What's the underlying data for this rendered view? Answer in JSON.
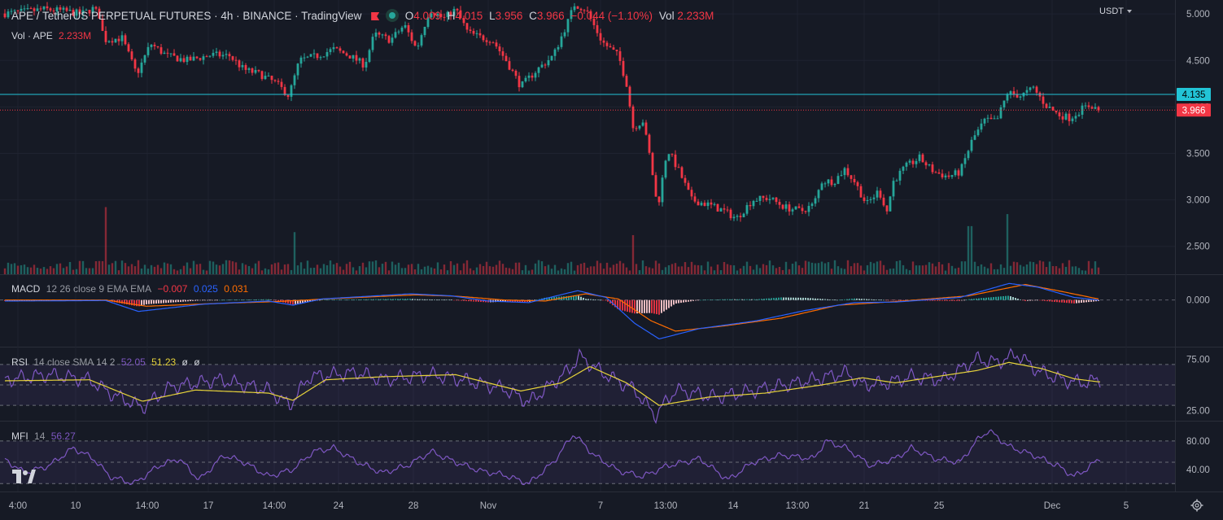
{
  "header": {
    "title": "APE / TetherUS PERPETUAL FUTURES · 4h · BINANCE · TradingView",
    "o_label": "O",
    "o_value": "4.009",
    "h_label": "H",
    "h_value": "4.015",
    "l_label": "L",
    "l_value": "3.956",
    "c_label": "C",
    "c_value": "3.966",
    "change": "−0.044 (−1.10%)",
    "vol_label": "Vol",
    "vol_value": "2.233M",
    "flag_icon": "red-flag-icon",
    "status_icon": "market-open-dot-icon"
  },
  "currency": "USDT",
  "volume_legend": {
    "label": "Vol · APE",
    "value": "2.233M"
  },
  "macd_legend": {
    "label": "MACD",
    "params": "12 26 close 9 EMA EMA",
    "v1": "−0.007",
    "v2": "0.025",
    "v3": "0.031"
  },
  "rsi_legend": {
    "label": "RSI",
    "params": "14 close SMA 14 2",
    "v1": "52.05",
    "v2": "51.23",
    "v3": "ø",
    "v4": "ø"
  },
  "mfi_legend": {
    "label": "MFI",
    "params": "14",
    "v1": "56.27"
  },
  "colors": {
    "background": "#161a25",
    "up": "#26a69a",
    "down": "#f23645",
    "macd_line": "#2962ff",
    "signal_line": "#ff6d00",
    "rsi_line": "#7e57c2",
    "rsi_ma": "#e6d23b",
    "level_line": "#22c4d6"
  },
  "chart_data": [
    {
      "type": "candlestick",
      "name": "APE / TetherUS",
      "ylim": [
        2.2,
        5.15
      ],
      "yticks": [
        "5.000",
        "4.500",
        "4.000",
        "3.500",
        "3.000",
        "2.500"
      ],
      "horizontal_line": {
        "value": 4.135,
        "label": "4.135"
      },
      "last_price": {
        "value": 3.966,
        "label": "3.966"
      },
      "x_ticks": [
        "4:00",
        "10",
        "14:00",
        "17",
        "14:00",
        "24",
        "28",
        "Nov",
        "7",
        "13:00",
        "14",
        "13:00",
        "21",
        "25",
        "Dec",
        "5"
      ],
      "close_anchors": [
        [
          0,
          5.0
        ],
        [
          25,
          5.02
        ],
        [
          55,
          5.05
        ],
        [
          80,
          5.03
        ],
        [
          100,
          5.0
        ],
        [
          115,
          5.06
        ],
        [
          122,
          4.98
        ],
        [
          128,
          4.72
        ],
        [
          150,
          4.74
        ],
        [
          168,
          4.35
        ],
        [
          185,
          4.68
        ],
        [
          205,
          4.55
        ],
        [
          230,
          4.5
        ],
        [
          260,
          4.56
        ],
        [
          282,
          4.55
        ],
        [
          300,
          4.4
        ],
        [
          320,
          4.35
        ],
        [
          340,
          4.25
        ],
        [
          355,
          4.12
        ],
        [
          368,
          4.5
        ],
        [
          390,
          4.55
        ],
        [
          410,
          4.62
        ],
        [
          430,
          4.55
        ],
        [
          448,
          4.45
        ],
        [
          460,
          4.78
        ],
        [
          480,
          4.72
        ],
        [
          497,
          4.88
        ],
        [
          512,
          4.62
        ],
        [
          528,
          5.05
        ],
        [
          545,
          4.95
        ],
        [
          560,
          5.05
        ],
        [
          575,
          4.8
        ],
        [
          590,
          4.75
        ],
        [
          605,
          4.72
        ],
        [
          622,
          4.5
        ],
        [
          640,
          4.22
        ],
        [
          660,
          4.4
        ],
        [
          680,
          4.55
        ],
        [
          698,
          4.92
        ],
        [
          706,
          5.1
        ],
        [
          720,
          5.05
        ],
        [
          740,
          4.7
        ],
        [
          760,
          4.55
        ],
        [
          770,
          4.25
        ],
        [
          778,
          3.78
        ],
        [
          790,
          3.85
        ],
        [
          800,
          3.4
        ],
        [
          808,
          2.9
        ],
        [
          820,
          3.55
        ],
        [
          835,
          3.3
        ],
        [
          850,
          3.0
        ],
        [
          870,
          2.95
        ],
        [
          890,
          2.88
        ],
        [
          905,
          2.8
        ],
        [
          925,
          3.0
        ],
        [
          945,
          3.02
        ],
        [
          965,
          2.92
        ],
        [
          985,
          2.88
        ],
        [
          1000,
          2.95
        ],
        [
          1010,
          3.2
        ],
        [
          1025,
          3.2
        ],
        [
          1038,
          3.33
        ],
        [
          1050,
          3.2
        ],
        [
          1065,
          2.95
        ],
        [
          1080,
          3.1
        ],
        [
          1090,
          2.88
        ],
        [
          1098,
          3.2
        ],
        [
          1112,
          3.35
        ],
        [
          1130,
          3.45
        ],
        [
          1148,
          3.3
        ],
        [
          1165,
          3.25
        ],
        [
          1180,
          3.3
        ],
        [
          1195,
          3.65
        ],
        [
          1210,
          3.85
        ],
        [
          1225,
          3.85
        ],
        [
          1238,
          4.15
        ],
        [
          1255,
          4.12
        ],
        [
          1270,
          4.2
        ],
        [
          1285,
          4.02
        ],
        [
          1300,
          3.92
        ],
        [
          1315,
          3.88
        ],
        [
          1330,
          3.98
        ],
        [
          1340,
          4.02
        ],
        [
          1350,
          3.966
        ]
      ]
    },
    {
      "type": "bar",
      "name": "Volume",
      "notable_spikes": [
        [
          130,
          2.233
        ],
        [
          362,
          1.4
        ],
        [
          777,
          1.3
        ],
        [
          1192,
          1.6
        ],
        [
          1238,
          2.0
        ]
      ]
    },
    {
      "type": "line",
      "name": "MACD",
      "ylim": [
        -0.9,
        0.45
      ],
      "ytick": "0.000",
      "series": [
        {
          "name": "MACD",
          "anchors": [
            [
              5,
              -0.02
            ],
            [
              130,
              -0.01
            ],
            [
              170,
              -0.22
            ],
            [
              250,
              -0.08
            ],
            [
              330,
              -0.02
            ],
            [
              360,
              -0.1
            ],
            [
              395,
              0.02
            ],
            [
              505,
              0.12
            ],
            [
              555,
              0.08
            ],
            [
              600,
              -0.02
            ],
            [
              650,
              -0.05
            ],
            [
              710,
              0.18
            ],
            [
              745,
              0.05
            ],
            [
              780,
              -0.45
            ],
            [
              810,
              -0.75
            ],
            [
              860,
              -0.55
            ],
            [
              930,
              -0.4
            ],
            [
              990,
              -0.2
            ],
            [
              1050,
              -0.05
            ],
            [
              1100,
              -0.04
            ],
            [
              1180,
              0.05
            ],
            [
              1240,
              0.32
            ],
            [
              1275,
              0.25
            ],
            [
              1320,
              0.05
            ],
            [
              1350,
              0.0
            ]
          ]
        },
        {
          "name": "Signal",
          "anchors": [
            [
              5,
              0.0
            ],
            [
              130,
              0.0
            ],
            [
              180,
              -0.12
            ],
            [
              260,
              -0.07
            ],
            [
              340,
              -0.03
            ],
            [
              400,
              0.02
            ],
            [
              510,
              0.1
            ],
            [
              565,
              0.07
            ],
            [
              620,
              0.0
            ],
            [
              670,
              -0.02
            ],
            [
              720,
              0.12
            ],
            [
              760,
              0.02
            ],
            [
              800,
              -0.4
            ],
            [
              830,
              -0.6
            ],
            [
              890,
              -0.5
            ],
            [
              960,
              -0.35
            ],
            [
              1030,
              -0.1
            ],
            [
              1100,
              -0.03
            ],
            [
              1190,
              0.08
            ],
            [
              1260,
              0.3
            ],
            [
              1300,
              0.18
            ],
            [
              1350,
              0.02
            ]
          ]
        }
      ]
    },
    {
      "type": "line",
      "name": "RSI",
      "ylim": [
        15,
        85
      ],
      "yticks": [
        "75.00",
        "25.00"
      ],
      "bands": [
        70,
        50,
        30
      ],
      "series": [
        {
          "name": "RSI",
          "anchors": [
            [
              5,
              55
            ],
            [
              60,
              60
            ],
            [
              110,
              55
            ],
            [
              135,
              42
            ],
            [
              175,
              28
            ],
            [
              210,
              48
            ],
            [
              270,
              55
            ],
            [
              330,
              45
            ],
            [
              356,
              30
            ],
            [
              380,
              58
            ],
            [
              440,
              62
            ],
            [
              470,
              55
            ],
            [
              530,
              60
            ],
            [
              575,
              54
            ],
            [
              620,
              46
            ],
            [
              650,
              33
            ],
            [
              700,
              65
            ],
            [
              712,
              78
            ],
            [
              740,
              62
            ],
            [
              780,
              45
            ],
            [
              805,
              20
            ],
            [
              830,
              45
            ],
            [
              880,
              38
            ],
            [
              930,
              45
            ],
            [
              1000,
              55
            ],
            [
              1040,
              62
            ],
            [
              1060,
              50
            ],
            [
              1090,
              52
            ],
            [
              1120,
              58
            ],
            [
              1160,
              55
            ],
            [
              1200,
              75
            ],
            [
              1225,
              72
            ],
            [
              1250,
              80
            ],
            [
              1275,
              64
            ],
            [
              1305,
              55
            ],
            [
              1330,
              52
            ],
            [
              1352,
              55
            ]
          ]
        },
        {
          "name": "RSI-based MA",
          "anchors": [
            [
              5,
              54
            ],
            [
              110,
              55
            ],
            [
              175,
              34
            ],
            [
              240,
              45
            ],
            [
              330,
              42
            ],
            [
              360,
              35
            ],
            [
              400,
              55
            ],
            [
              470,
              58
            ],
            [
              560,
              60
            ],
            [
              640,
              44
            ],
            [
              690,
              52
            ],
            [
              725,
              68
            ],
            [
              770,
              52
            ],
            [
              810,
              30
            ],
            [
              870,
              38
            ],
            [
              940,
              42
            ],
            [
              1010,
              50
            ],
            [
              1060,
              57
            ],
            [
              1100,
              52
            ],
            [
              1150,
              58
            ],
            [
              1200,
              64
            ],
            [
              1240,
              72
            ],
            [
              1280,
              66
            ],
            [
              1320,
              56
            ],
            [
              1350,
              53
            ]
          ]
        }
      ]
    },
    {
      "type": "line",
      "name": "MFI",
      "ylim": [
        10,
        105
      ],
      "yticks": [
        "80.00",
        "40.00"
      ],
      "bands": [
        80,
        50,
        20
      ],
      "series": [
        {
          "name": "MFI",
          "anchors": [
            [
              5,
              55
            ],
            [
              30,
              35
            ],
            [
              60,
              45
            ],
            [
              90,
              70
            ],
            [
              115,
              55
            ],
            [
              135,
              30
            ],
            [
              165,
              20
            ],
            [
              195,
              45
            ],
            [
              220,
              55
            ],
            [
              245,
              25
            ],
            [
              275,
              60
            ],
            [
              300,
              50
            ],
            [
              330,
              30
            ],
            [
              360,
              40
            ],
            [
              385,
              65
            ],
            [
              410,
              70
            ],
            [
              440,
              50
            ],
            [
              470,
              35
            ],
            [
              500,
              45
            ],
            [
              530,
              65
            ],
            [
              560,
              50
            ],
            [
              590,
              38
            ],
            [
              620,
              32
            ],
            [
              650,
              20
            ],
            [
              680,
              50
            ],
            [
              705,
              90
            ],
            [
              730,
              60
            ],
            [
              760,
              38
            ],
            [
              790,
              30
            ],
            [
              820,
              45
            ],
            [
              860,
              55
            ],
            [
              895,
              25
            ],
            [
              925,
              50
            ],
            [
              960,
              60
            ],
            [
              1000,
              55
            ],
            [
              1015,
              80
            ],
            [
              1040,
              70
            ],
            [
              1070,
              45
            ],
            [
              1100,
              55
            ],
            [
              1120,
              70
            ],
            [
              1150,
              55
            ],
            [
              1180,
              50
            ],
            [
              1200,
              80
            ],
            [
              1215,
              95
            ],
            [
              1240,
              72
            ],
            [
              1270,
              60
            ],
            [
              1300,
              45
            ],
            [
              1320,
              30
            ],
            [
              1335,
              40
            ],
            [
              1352,
              56
            ]
          ]
        }
      ]
    }
  ]
}
